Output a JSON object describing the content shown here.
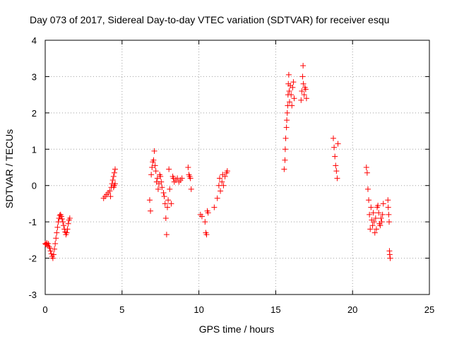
{
  "chart_data": {
    "type": "scatter",
    "title": "Day 073 of 2017, Sidereal Day-to-day VTEC variation (SDTVAR) for receiver esqu",
    "xlabel": "GPS time / hours",
    "ylabel": "SDTVAR / TECUs",
    "xlim": [
      0,
      25
    ],
    "ylim": [
      -3,
      4
    ],
    "xticks": [
      0,
      5,
      10,
      15,
      20,
      25
    ],
    "yticks": [
      -3,
      -2,
      -1,
      0,
      1,
      2,
      3,
      4
    ],
    "grid": true,
    "marker": "+",
    "color": "#ff0000",
    "series": [
      {
        "name": "SDTVAR",
        "points": [
          [
            0.0,
            -1.6
          ],
          [
            0.05,
            -1.62
          ],
          [
            0.1,
            -1.58
          ],
          [
            0.15,
            -1.65
          ],
          [
            0.2,
            -1.6
          ],
          [
            0.25,
            -1.68
          ],
          [
            0.3,
            -1.72
          ],
          [
            0.35,
            -1.8
          ],
          [
            0.4,
            -1.88
          ],
          [
            0.45,
            -1.95
          ],
          [
            0.5,
            -2.0
          ],
          [
            0.55,
            -1.9
          ],
          [
            0.6,
            -1.75
          ],
          [
            0.65,
            -1.6
          ],
          [
            0.7,
            -1.45
          ],
          [
            0.75,
            -1.3
          ],
          [
            0.8,
            -1.15
          ],
          [
            0.85,
            -1.0
          ],
          [
            0.9,
            -0.9
          ],
          [
            0.95,
            -0.82
          ],
          [
            1.0,
            -0.8
          ],
          [
            1.05,
            -0.85
          ],
          [
            1.1,
            -0.92
          ],
          [
            1.15,
            -1.0
          ],
          [
            1.2,
            -1.1
          ],
          [
            1.25,
            -1.2
          ],
          [
            1.3,
            -1.28
          ],
          [
            1.35,
            -1.35
          ],
          [
            1.4,
            -1.3
          ],
          [
            1.45,
            -1.2
          ],
          [
            1.5,
            -1.05
          ],
          [
            1.55,
            -0.95
          ],
          [
            1.6,
            -0.9
          ],
          [
            3.8,
            -0.35
          ],
          [
            3.9,
            -0.3
          ],
          [
            4.0,
            -0.25
          ],
          [
            4.1,
            -0.2
          ],
          [
            4.2,
            -0.15
          ],
          [
            4.25,
            -0.3
          ],
          [
            4.3,
            -0.05
          ],
          [
            4.35,
            0.05
          ],
          [
            4.4,
            0.15
          ],
          [
            4.45,
            0.25
          ],
          [
            4.5,
            0.35
          ],
          [
            4.55,
            0.45
          ],
          [
            4.45,
            -0.05
          ],
          [
            4.5,
            0.0
          ],
          [
            4.55,
            0.05
          ],
          [
            6.8,
            -0.4
          ],
          [
            6.85,
            -0.7
          ],
          [
            6.9,
            0.3
          ],
          [
            6.95,
            0.5
          ],
          [
            7.0,
            0.65
          ],
          [
            7.05,
            0.7
          ],
          [
            7.1,
            0.95
          ],
          [
            7.15,
            0.55
          ],
          [
            7.2,
            0.4
          ],
          [
            7.25,
            0.1
          ],
          [
            7.3,
            0.2
          ],
          [
            7.35,
            -0.1
          ],
          [
            7.4,
            0.05
          ],
          [
            7.45,
            0.3
          ],
          [
            7.5,
            0.25
          ],
          [
            7.55,
            0.1
          ],
          [
            7.6,
            -0.05
          ],
          [
            7.7,
            -0.2
          ],
          [
            7.75,
            -0.3
          ],
          [
            7.8,
            -0.5
          ],
          [
            7.85,
            -0.9
          ],
          [
            7.9,
            -1.35
          ],
          [
            7.95,
            -0.6
          ],
          [
            8.0,
            -0.4
          ],
          [
            8.05,
            0.45
          ],
          [
            8.1,
            -0.1
          ],
          [
            8.2,
            -0.5
          ],
          [
            8.3,
            0.25
          ],
          [
            8.35,
            0.2
          ],
          [
            8.4,
            0.1
          ],
          [
            8.5,
            0.15
          ],
          [
            8.6,
            0.2
          ],
          [
            8.7,
            0.1
          ],
          [
            8.8,
            0.15
          ],
          [
            8.9,
            0.2
          ],
          [
            9.3,
            0.5
          ],
          [
            9.35,
            0.3
          ],
          [
            9.4,
            0.25
          ],
          [
            9.45,
            0.2
          ],
          [
            9.5,
            -0.1
          ],
          [
            10.1,
            -0.8
          ],
          [
            10.2,
            -0.85
          ],
          [
            10.4,
            -1.0
          ],
          [
            10.45,
            -1.3
          ],
          [
            10.5,
            -1.35
          ],
          [
            10.55,
            -0.7
          ],
          [
            10.6,
            -0.75
          ],
          [
            11.0,
            -0.6
          ],
          [
            11.2,
            -0.35
          ],
          [
            11.3,
            0.0
          ],
          [
            11.35,
            0.2
          ],
          [
            11.4,
            -0.15
          ],
          [
            11.5,
            0.1
          ],
          [
            11.55,
            0.3
          ],
          [
            11.6,
            0.0
          ],
          [
            11.7,
            0.25
          ],
          [
            11.8,
            0.35
          ],
          [
            11.85,
            0.4
          ],
          [
            15.55,
            0.45
          ],
          [
            15.6,
            0.7
          ],
          [
            15.62,
            1.0
          ],
          [
            15.65,
            1.3
          ],
          [
            15.7,
            1.6
          ],
          [
            15.72,
            1.8
          ],
          [
            15.75,
            2.0
          ],
          [
            15.78,
            2.2
          ],
          [
            15.8,
            2.5
          ],
          [
            15.82,
            2.8
          ],
          [
            15.85,
            3.05
          ],
          [
            15.88,
            2.6
          ],
          [
            15.9,
            2.3
          ],
          [
            15.95,
            2.75
          ],
          [
            16.0,
            2.5
          ],
          [
            16.05,
            2.2
          ],
          [
            16.1,
            2.7
          ],
          [
            16.15,
            2.85
          ],
          [
            16.2,
            2.4
          ],
          [
            16.65,
            2.35
          ],
          [
            16.7,
            2.6
          ],
          [
            16.75,
            3.0
          ],
          [
            16.78,
            3.3
          ],
          [
            16.8,
            2.8
          ],
          [
            16.85,
            2.5
          ],
          [
            16.9,
            2.7
          ],
          [
            16.95,
            2.65
          ],
          [
            17.0,
            2.4
          ],
          [
            18.75,
            1.3
          ],
          [
            18.8,
            1.05
          ],
          [
            18.85,
            0.8
          ],
          [
            18.9,
            0.55
          ],
          [
            18.95,
            0.4
          ],
          [
            19.0,
            0.2
          ],
          [
            19.05,
            1.15
          ],
          [
            20.9,
            0.5
          ],
          [
            20.95,
            0.35
          ],
          [
            21.0,
            -0.1
          ],
          [
            21.05,
            -0.4
          ],
          [
            21.1,
            -0.8
          ],
          [
            21.15,
            -1.2
          ],
          [
            21.2,
            -0.6
          ],
          [
            21.25,
            -0.95
          ],
          [
            21.3,
            -1.1
          ],
          [
            21.35,
            -0.75
          ],
          [
            21.4,
            -1.0
          ],
          [
            21.45,
            -1.3
          ],
          [
            21.5,
            -0.9
          ],
          [
            21.55,
            -1.2
          ],
          [
            21.6,
            -0.6
          ],
          [
            21.65,
            -0.55
          ],
          [
            21.7,
            -0.75
          ],
          [
            21.75,
            -1.05
          ],
          [
            21.8,
            -1.1
          ],
          [
            21.85,
            -0.9
          ],
          [
            21.9,
            -1.0
          ],
          [
            21.95,
            -0.8
          ],
          [
            22.0,
            -0.5
          ],
          [
            22.3,
            -0.4
          ],
          [
            22.32,
            -0.6
          ],
          [
            22.35,
            -0.8
          ],
          [
            22.38,
            -1.0
          ],
          [
            22.4,
            -1.8
          ],
          [
            22.42,
            -1.9
          ],
          [
            22.45,
            -2.0
          ]
        ]
      }
    ]
  }
}
